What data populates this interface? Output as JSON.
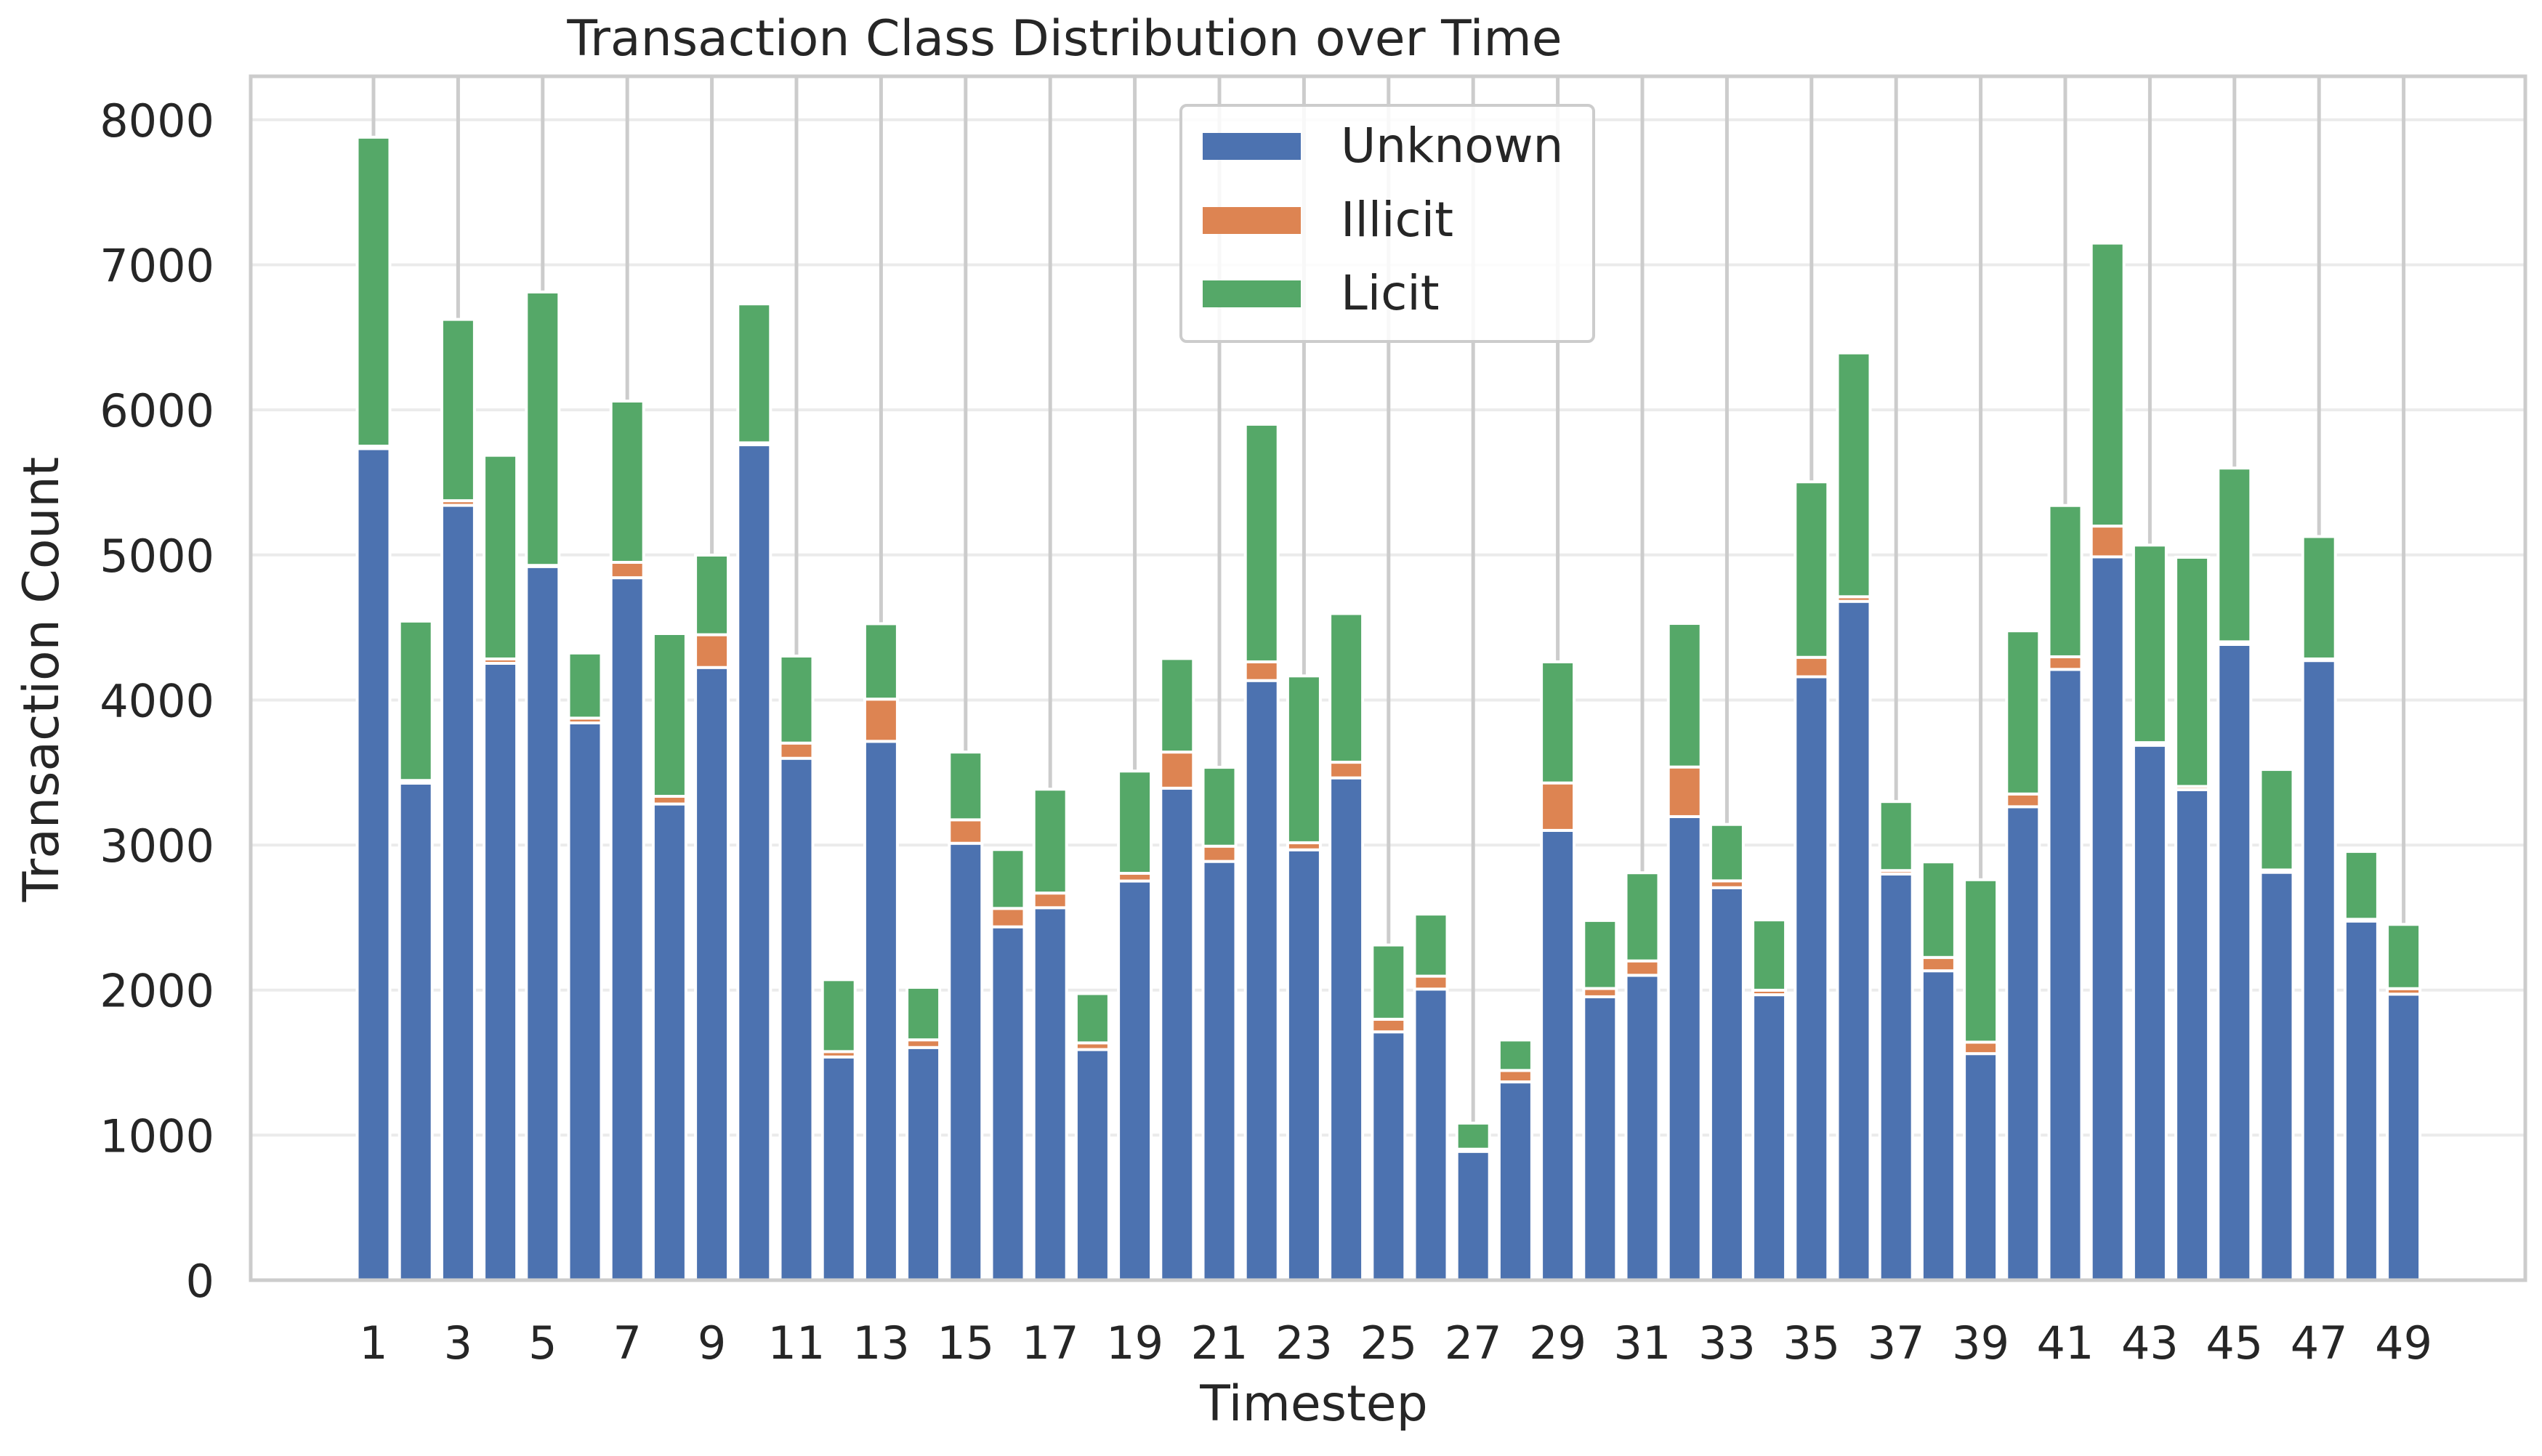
{
  "chart_data": {
    "type": "bar",
    "stacked": true,
    "title": "Transaction Class Distribution over Time",
    "xlabel": "Timestep",
    "ylabel": "Transaction Count",
    "ylim": [
      0,
      8300
    ],
    "yticks": [
      0,
      1000,
      2000,
      3000,
      4000,
      5000,
      6000,
      7000,
      8000
    ],
    "xtick_labels": [
      "1",
      "3",
      "5",
      "7",
      "9",
      "11",
      "13",
      "15",
      "17",
      "19",
      "21",
      "23",
      "25",
      "27",
      "29",
      "31",
      "33",
      "35",
      "37",
      "39",
      "41",
      "43",
      "45",
      "47",
      "49"
    ],
    "grid": true,
    "legend_position": "upper center",
    "categories": [
      1,
      2,
      3,
      4,
      5,
      6,
      7,
      8,
      9,
      10,
      11,
      12,
      13,
      14,
      15,
      16,
      17,
      18,
      19,
      20,
      21,
      22,
      23,
      24,
      25,
      26,
      27,
      28,
      29,
      30,
      31,
      32,
      33,
      34,
      35,
      36,
      37,
      38,
      39,
      40,
      41,
      42,
      43,
      44,
      45,
      46,
      47,
      48,
      49
    ],
    "series": [
      {
        "name": "Unknown",
        "color": "#4c72b0",
        "values": [
          5733,
          3427,
          5342,
          4253,
          4920,
          3842,
          4843,
          3283,
          4224,
          5760,
          3598,
          1539,
          3715,
          1604,
          3012,
          2436,
          2568,
          1590,
          2752,
          3392,
          2887,
          4134,
          2967,
          3463,
          1712,
          2007,
          888,
          1367,
          3101,
          1954,
          2102,
          3196,
          2706,
          1968,
          4160,
          4680,
          2800,
          2133,
          1562,
          3264,
          4211,
          4987,
          3688,
          3382,
          4383,
          2812,
          4272,
          2476,
          1972
        ]
      },
      {
        "name": "Illicit",
        "color": "#dd8452",
        "values": [
          17,
          18,
          32,
          30,
          8,
          33,
          106,
          53,
          226,
          13,
          105,
          37,
          291,
          53,
          162,
          127,
          101,
          46,
          53,
          249,
          105,
          129,
          49,
          108,
          87,
          89,
          15,
          79,
          327,
          57,
          99,
          342,
          47,
          31,
          134,
          32,
          24,
          92,
          79,
          88,
          87,
          212,
          18,
          22,
          18,
          16,
          11,
          12,
          38
        ]
      },
      {
        "name": "Licit",
        "color": "#55a868",
        "values": [
          2130,
          1099,
          1250,
          1404,
          1885,
          449,
          1112,
          1122,
          549,
          958,
          600,
          496,
          520,
          362,
          467,
          406,
          716,
          340,
          705,
          645,
          544,
          1638,
          1150,
          1025,
          512,
          428,
          180,
          210,
          835,
          469,
          608,
          990,
          389,
          485,
          1210,
          1681,
          476,
          659,
          1120,
          1125,
          1043,
          1951,
          1362,
          1580,
          1198,
          693,
          844,
          468,
          443
        ]
      }
    ]
  }
}
